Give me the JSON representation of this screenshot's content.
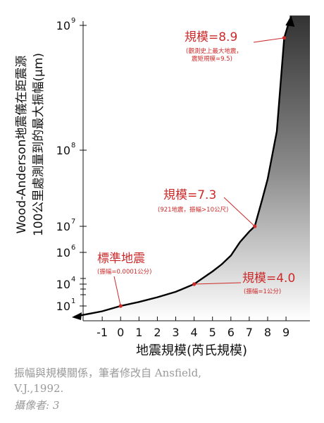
{
  "chart_data": {
    "type": "line",
    "xlabel": "地震規模(芮氏規模)",
    "ylabel": "Wood-Anderson地震儀在距震源100公里處測量到的最大振幅(μm)",
    "ylabel_lines": [
      "Wood-Anderson地震儀在距震源",
      "100公里處測量到的最大振幅(μm)"
    ],
    "xlim": [
      -2.5,
      10.3
    ],
    "x_ticks": [
      -1,
      0,
      1,
      2,
      3,
      4,
      5,
      6,
      7,
      8,
      9
    ],
    "y_scale": "custom-stretched-log",
    "y_ticks": [
      {
        "label": "10",
        "exp": "1"
      },
      {
        "label": "10",
        "exp": "4"
      },
      {
        "label": "10",
        "exp": "6"
      },
      {
        "label": "10",
        "exp": "7"
      },
      {
        "label": "10",
        "exp": "8"
      },
      {
        "label": "10",
        "exp": "9"
      }
    ],
    "series": [
      {
        "x": [
          -2.5,
          -1,
          0,
          1,
          2,
          3,
          4,
          5,
          5.5,
          6,
          6.5,
          7,
          7.3,
          7.7,
          8,
          8.5,
          8.9,
          9.2
        ],
        "y": [
          0.5,
          0.75,
          1,
          1.55,
          2.2,
          2.95,
          4,
          4.8,
          5.25,
          5.8,
          6.4,
          6.8,
          7.0,
          7.35,
          7.62,
          8.15,
          8.9,
          9.5
        ]
      }
    ],
    "points": [
      {
        "x": 0,
        "y": 1,
        "title": "標準地震",
        "note": "(振幅=0.0001公分)"
      },
      {
        "x": 4,
        "y": 4,
        "title": "規模=4.0",
        "note": "(振幅=1公分)"
      },
      {
        "x": 7.3,
        "y": 7.0,
        "title": "規模=7.3",
        "note": "(921地震，振幅>10公尺)"
      },
      {
        "x": 8.9,
        "y": 8.9,
        "title": "規模=8.9",
        "note": "(觀測史上最大地震，",
        "note2": "震矩規模=9.5)"
      }
    ],
    "colors": {
      "curve": "#000000",
      "annotation": "#cc2a2a",
      "fill_dark": "#333333"
    }
  },
  "caption": {
    "line1": "振幅與規模關係，筆者修改自 Ansfield,",
    "line2": "V.J.,1992.",
    "line3": "攝像者: 3"
  }
}
